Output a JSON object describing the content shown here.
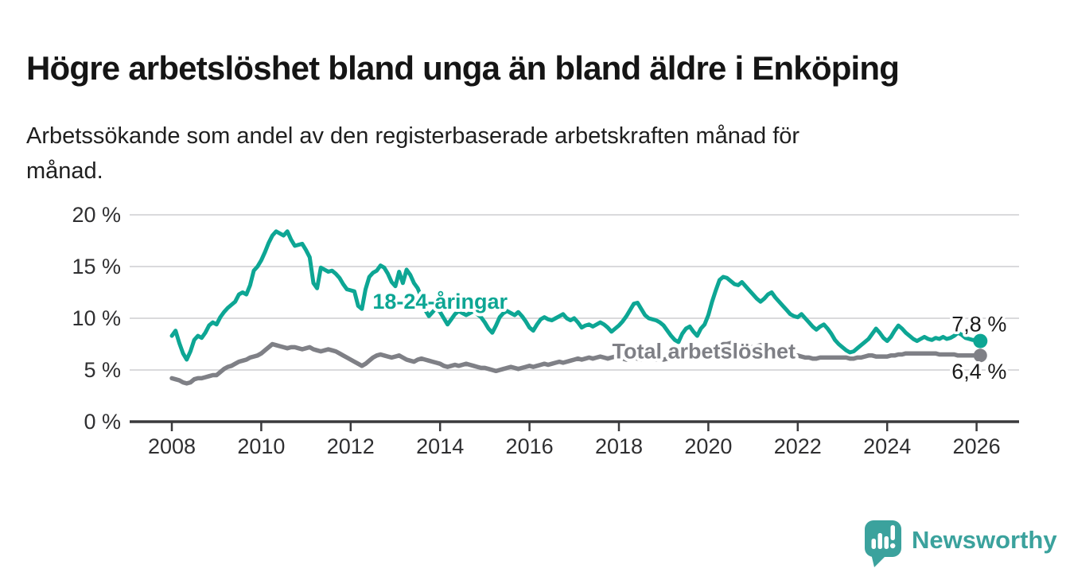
{
  "header": {
    "title": "Högre arbetslöshet bland unga än bland äldre i Enköping",
    "subtitle": "Arbetssökande som andel av den registerbaserade arbetskraften månad för\nmånad."
  },
  "chart_data": {
    "type": "line",
    "title": "Högre arbetslöshet bland unga än bland äldre i Enköping",
    "xlabel": "",
    "ylabel": "",
    "x_start": 2008.0,
    "x_step_months": 1,
    "x_ticks": [
      2008,
      2010,
      2012,
      2014,
      2016,
      2018,
      2020,
      2022,
      2024,
      2026
    ],
    "y_ticks": [
      0,
      5,
      10,
      15,
      20
    ],
    "y_tick_suffix": " %",
    "ylim": [
      0,
      21
    ],
    "xlim": [
      2007.05,
      2026.95
    ],
    "grid": "horizontal",
    "legend_position": "inline-labels",
    "colors": {
      "young": "#0da694",
      "total": "#7f8086",
      "grid": "#dadadc",
      "axis": "#3a3a3c",
      "value_label": "#1a1a1a"
    },
    "series": [
      {
        "name": "18-24-åringar",
        "color": "#0da694",
        "line_width": 5,
        "dot_radius": 9,
        "end_label": "7,8 %",
        "label_anchor": {
          "x": 2014.0,
          "y": 11.6
        },
        "values": [
          8.3,
          8.8,
          7.6,
          6.6,
          6.0,
          6.8,
          7.9,
          8.3,
          8.1,
          8.6,
          9.3,
          9.6,
          9.4,
          10.1,
          10.6,
          11.0,
          11.3,
          11.6,
          12.3,
          12.5,
          12.3,
          13.2,
          14.6,
          15.0,
          15.6,
          16.4,
          17.3,
          18.0,
          18.4,
          18.2,
          18.0,
          18.4,
          17.6,
          17.0,
          17.1,
          17.2,
          16.6,
          15.9,
          13.4,
          12.9,
          14.9,
          14.7,
          14.5,
          14.6,
          14.3,
          13.9,
          13.3,
          12.8,
          12.7,
          12.6,
          11.2,
          10.9,
          12.8,
          14.0,
          14.4,
          14.6,
          15.1,
          14.9,
          14.3,
          13.5,
          13.1,
          14.5,
          13.4,
          14.7,
          14.2,
          13.4,
          12.9,
          12.0,
          10.8,
          10.2,
          10.6,
          11.0,
          10.6,
          10.0,
          9.4,
          9.9,
          10.4,
          10.7,
          10.5,
          10.3,
          10.5,
          10.7,
          10.4,
          10.1,
          9.6,
          9.0,
          8.6,
          9.3,
          10.1,
          10.5,
          10.7,
          10.5,
          10.3,
          10.6,
          10.2,
          9.7,
          9.1,
          8.8,
          9.4,
          9.9,
          10.1,
          9.9,
          9.8,
          10.0,
          10.2,
          10.4,
          10.0,
          9.8,
          10.0,
          9.6,
          9.1,
          9.3,
          9.4,
          9.2,
          9.4,
          9.6,
          9.4,
          9.1,
          8.7,
          9.0,
          9.3,
          9.7,
          10.2,
          10.8,
          11.4,
          11.5,
          10.9,
          10.3,
          10.0,
          9.9,
          9.8,
          9.6,
          9.3,
          8.8,
          8.3,
          7.9,
          7.7,
          8.5,
          9.0,
          9.2,
          8.7,
          8.3,
          9.0,
          9.4,
          10.3,
          11.6,
          12.7,
          13.7,
          14.0,
          13.9,
          13.6,
          13.3,
          13.2,
          13.5,
          13.1,
          12.7,
          12.3,
          11.9,
          11.6,
          11.9,
          12.3,
          12.5,
          12.0,
          11.6,
          11.2,
          10.8,
          10.4,
          10.2,
          10.1,
          10.4,
          10.0,
          9.6,
          9.2,
          8.9,
          9.2,
          9.4,
          9.0,
          8.5,
          7.9,
          7.5,
          7.2,
          6.9,
          6.7,
          6.8,
          7.1,
          7.4,
          7.7,
          8.0,
          8.5,
          9.0,
          8.6,
          8.1,
          7.8,
          8.2,
          8.8,
          9.3,
          9.0,
          8.6,
          8.3,
          8.0,
          7.8,
          8.0,
          8.2,
          8.0,
          7.9,
          8.1,
          8.0,
          8.2,
          8.0,
          8.1,
          8.3,
          8.6,
          8.4,
          8.1,
          8.0,
          7.9,
          7.9,
          7.8
        ]
      },
      {
        "name": "Total arbetslöshet",
        "color": "#7f8086",
        "line_width": 5.5,
        "dot_radius": 8.5,
        "end_label": "6,4 %",
        "label_anchor": {
          "x": 2019.9,
          "y": 6.8
        },
        "values": [
          4.2,
          4.1,
          4.0,
          3.8,
          3.7,
          3.8,
          4.1,
          4.2,
          4.2,
          4.3,
          4.4,
          4.5,
          4.5,
          4.8,
          5.1,
          5.3,
          5.4,
          5.6,
          5.8,
          5.9,
          6.0,
          6.2,
          6.3,
          6.4,
          6.6,
          6.9,
          7.2,
          7.5,
          7.4,
          7.3,
          7.2,
          7.1,
          7.2,
          7.2,
          7.1,
          7.0,
          7.1,
          7.2,
          7.0,
          6.9,
          6.8,
          6.9,
          7.0,
          6.9,
          6.8,
          6.6,
          6.4,
          6.2,
          6.0,
          5.8,
          5.6,
          5.4,
          5.6,
          5.9,
          6.2,
          6.4,
          6.5,
          6.4,
          6.3,
          6.2,
          6.3,
          6.4,
          6.2,
          6.0,
          5.9,
          5.8,
          6.0,
          6.1,
          6.0,
          5.9,
          5.8,
          5.7,
          5.6,
          5.4,
          5.3,
          5.4,
          5.5,
          5.4,
          5.5,
          5.6,
          5.5,
          5.4,
          5.3,
          5.2,
          5.2,
          5.1,
          5.0,
          4.9,
          5.0,
          5.1,
          5.2,
          5.3,
          5.2,
          5.1,
          5.2,
          5.3,
          5.4,
          5.3,
          5.4,
          5.5,
          5.6,
          5.5,
          5.6,
          5.7,
          5.8,
          5.7,
          5.8,
          5.9,
          6.0,
          6.1,
          6.0,
          6.1,
          6.2,
          6.1,
          6.2,
          6.3,
          6.2,
          6.1,
          6.2,
          6.3,
          6.2,
          6.1,
          6.0,
          6.1,
          6.2,
          6.1,
          6.0,
          6.1,
          6.2,
          6.1,
          6.0,
          6.1,
          6.0,
          6.1,
          6.2,
          6.1,
          6.2,
          6.3,
          6.2,
          6.3,
          6.2,
          6.3,
          6.4,
          6.5,
          6.6,
          6.8,
          7.0,
          7.3,
          7.5,
          7.5,
          7.6,
          7.5,
          7.4,
          7.3,
          7.3,
          7.2,
          7.2,
          7.3,
          7.4,
          7.3,
          7.1,
          6.9,
          6.8,
          6.7,
          6.6,
          6.5,
          6.5,
          6.4,
          6.4,
          6.3,
          6.2,
          6.2,
          6.1,
          6.1,
          6.2,
          6.2,
          6.2,
          6.2,
          6.2,
          6.2,
          6.2,
          6.2,
          6.1,
          6.1,
          6.2,
          6.2,
          6.3,
          6.4,
          6.4,
          6.3,
          6.3,
          6.3,
          6.3,
          6.4,
          6.4,
          6.5,
          6.5,
          6.6,
          6.6,
          6.6,
          6.6,
          6.6,
          6.6,
          6.6,
          6.6,
          6.6,
          6.5,
          6.5,
          6.5,
          6.5,
          6.5,
          6.4,
          6.4,
          6.4,
          6.4,
          6.4,
          6.4,
          6.4
        ]
      }
    ]
  },
  "footer": {
    "brand": "Newsworthy",
    "logo_color": "#3ba29d"
  }
}
